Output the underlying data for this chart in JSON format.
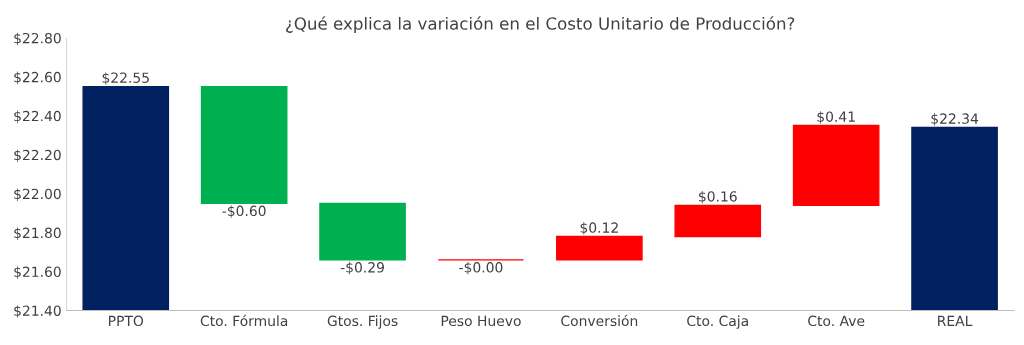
{
  "chart_data": {
    "type": "bar",
    "title": "¿Qué explica la variación en el Costo Unitario de Producción?",
    "categories": [
      "PPTO",
      "Cto. Fórmula",
      "Gtos. Fijos",
      "Peso Huevo",
      "Conversión",
      "Cto. Caja",
      "Cto. Ave",
      "REAL"
    ],
    "values": [
      22.55,
      -0.6,
      -0.29,
      0,
      0.12,
      0.16,
      0.41,
      22.34
    ],
    "base": [
      null,
      22.55,
      21.95,
      21.66,
      21.66,
      21.78,
      21.94,
      null
    ],
    "colors": [
      "#002060",
      "#00b050",
      "#00b050",
      "#ff0000",
      "#ff0000",
      "#ff0000",
      "#ff0000",
      "#002060"
    ],
    "value_labels": [
      "$22.55",
      "-$0.60",
      "-$0.29",
      "-$0.00",
      "$0.12",
      "$0.16",
      "$0.41",
      "$22.34"
    ],
    "ylim": [
      21.4,
      22.8
    ],
    "yticks": [
      {
        "value": 21.4,
        "label": "$21.40"
      },
      {
        "value": 21.6,
        "label": "$21.60"
      },
      {
        "value": 21.8,
        "label": "$21.80"
      },
      {
        "value": 22.0,
        "label": "$22.00"
      },
      {
        "value": 22.2,
        "label": "$22.20"
      },
      {
        "value": 22.4,
        "label": "$22.40"
      },
      {
        "value": 22.6,
        "label": "$22.60"
      },
      {
        "value": 22.8,
        "label": "$22.80"
      }
    ],
    "grid": false
  }
}
